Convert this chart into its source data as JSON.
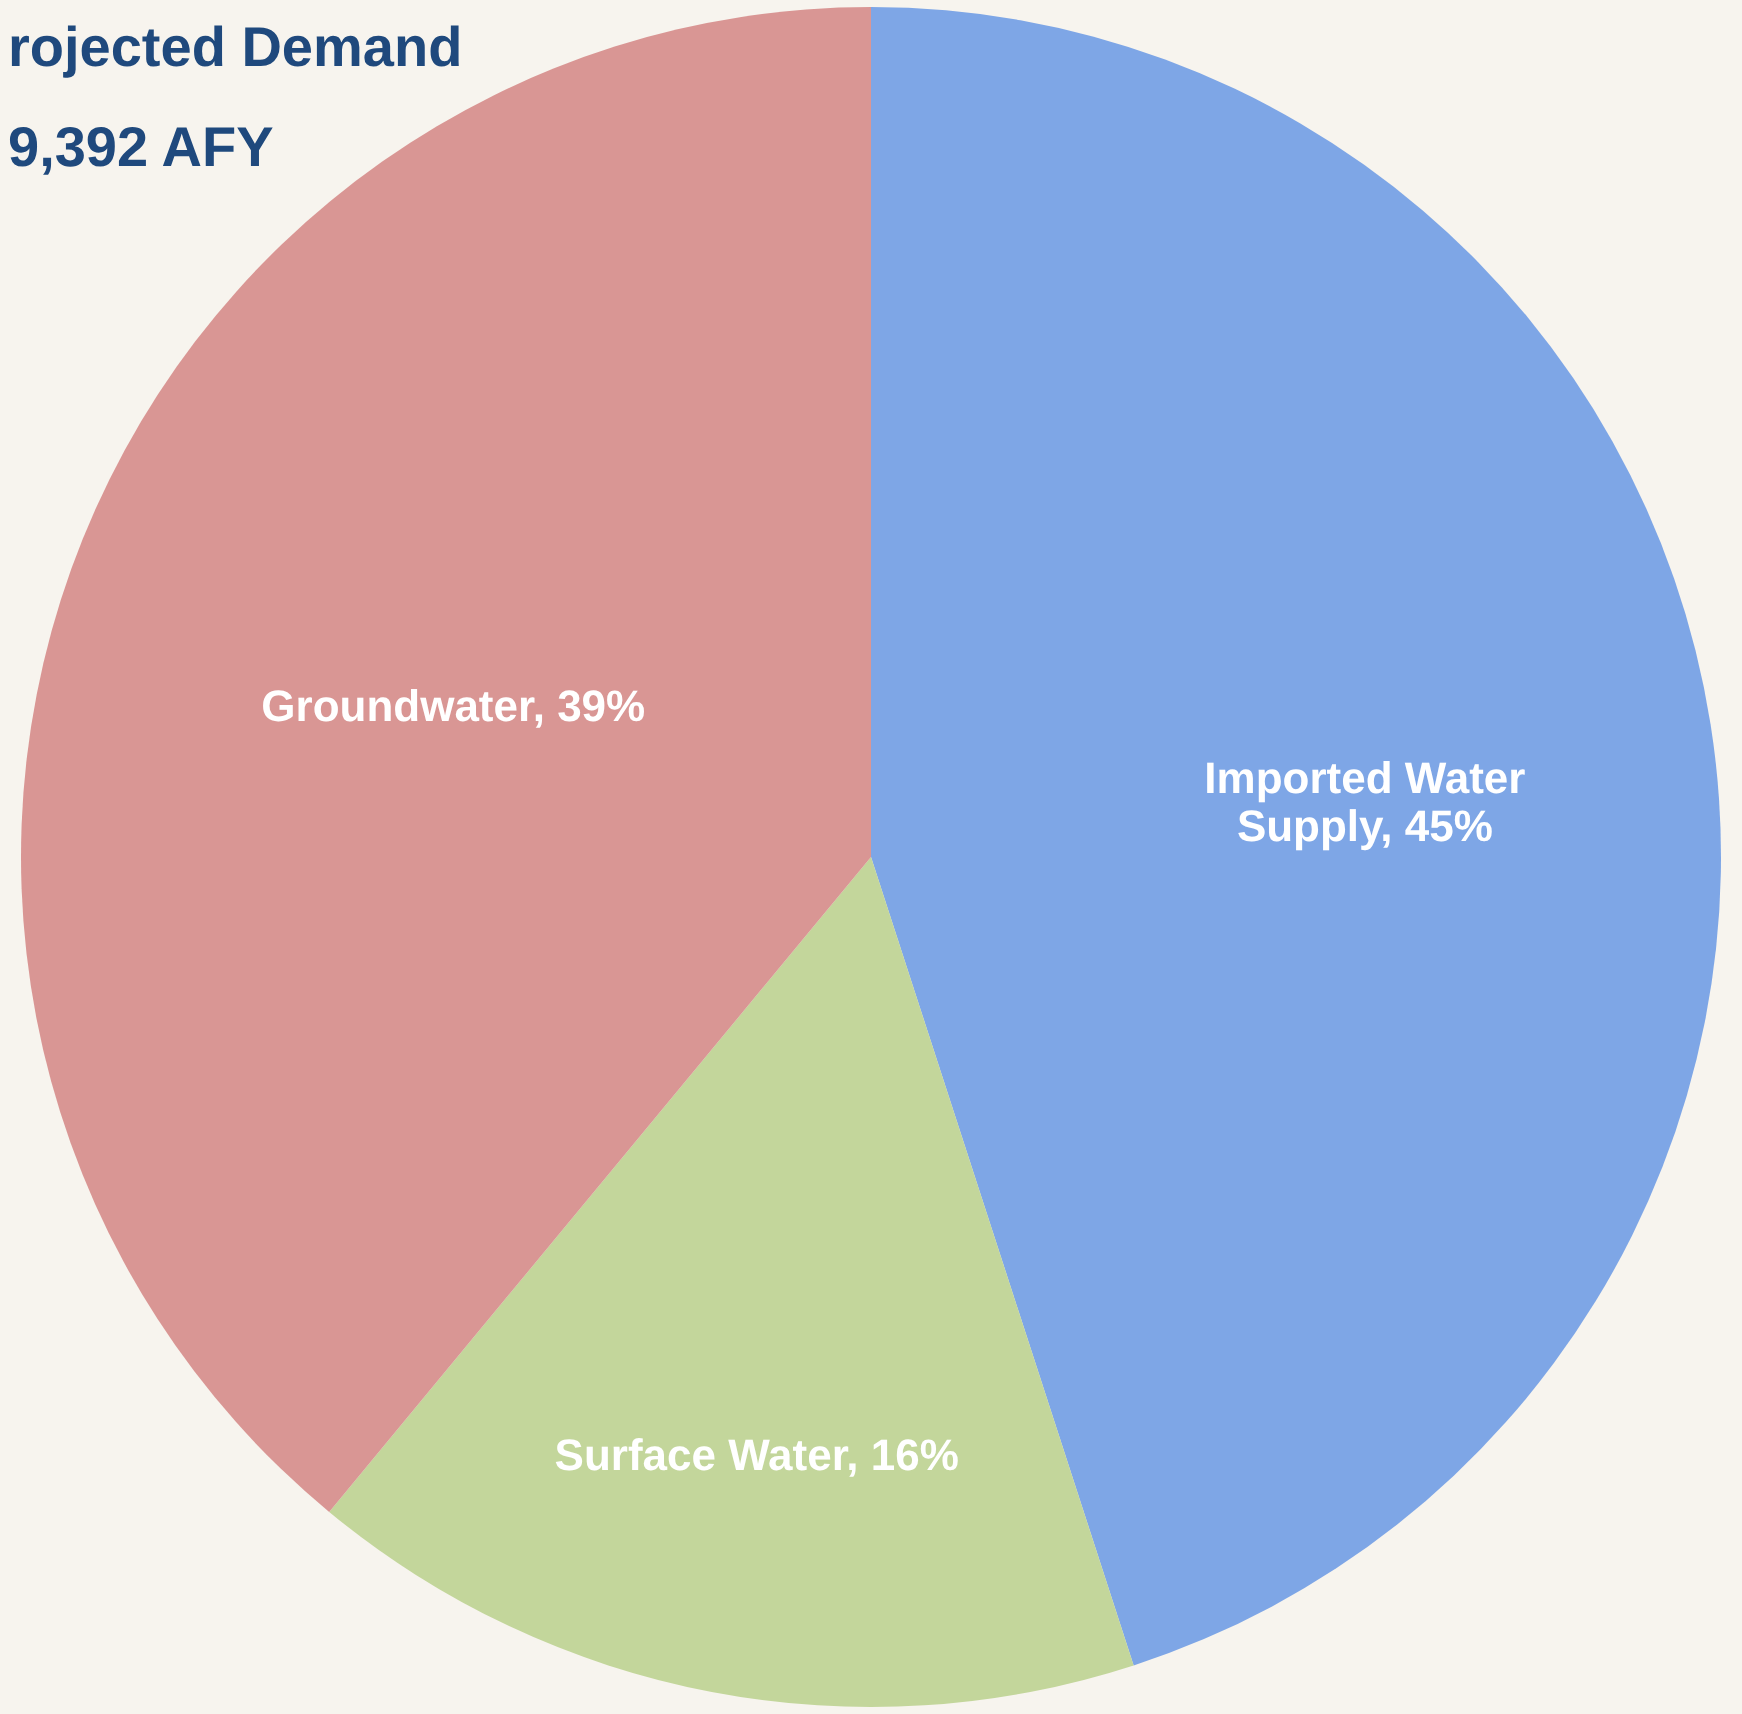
{
  "chart_data": {
    "type": "pie",
    "title": [
      "rojected Demand",
      "9,392 AFY"
    ],
    "categories": [
      "Imported Water Supply",
      "Surface Water",
      "Groundwater"
    ],
    "values": [
      45,
      16,
      39
    ],
    "colors": [
      "#7ea6e6",
      "#c3d69b",
      "#d99694"
    ],
    "value_labels": [
      "45%",
      "16%",
      "39%"
    ]
  }
}
